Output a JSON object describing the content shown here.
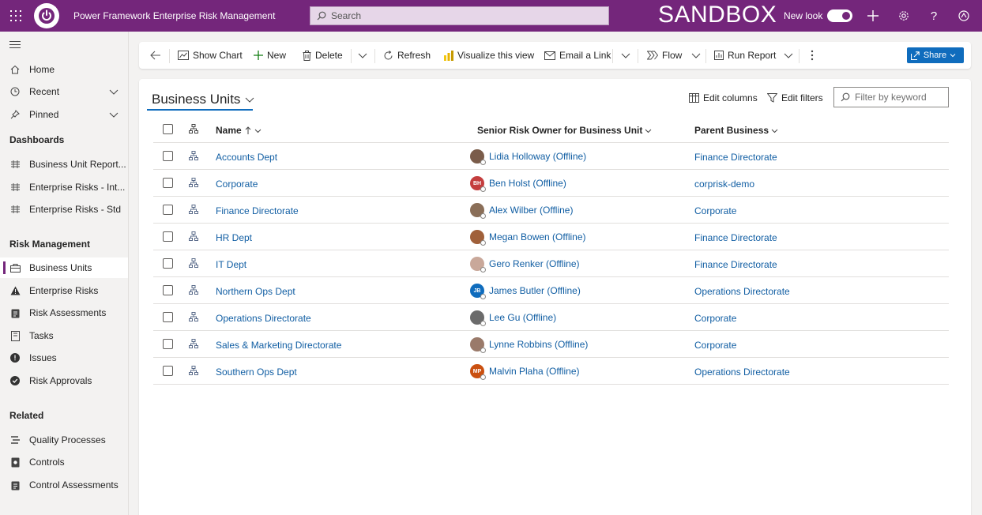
{
  "topbar": {
    "app_title": "Power Framework Enterprise Risk Management",
    "search_placeholder": "Search",
    "environment_label": "SANDBOX",
    "new_look_label": "New look",
    "new_look_on": true,
    "brand_color": "#74267b"
  },
  "sidebar": {
    "top_items": [
      {
        "label": "Home",
        "icon": "home-icon"
      },
      {
        "label": "Recent",
        "icon": "clock-icon"
      },
      {
        "label": "Pinned",
        "icon": "pin-icon"
      }
    ],
    "sections": [
      {
        "title": "Dashboards",
        "items": [
          {
            "label": "Business Unit Report...",
            "icon": "dashboard-icon"
          },
          {
            "label": "Enterprise Risks - Int...",
            "icon": "dashboard-icon"
          },
          {
            "label": "Enterprise Risks - Std",
            "icon": "dashboard-icon"
          }
        ]
      },
      {
        "title": "Risk Management",
        "items": [
          {
            "label": "Business Units",
            "icon": "business-unit-icon",
            "active": true
          },
          {
            "label": "Enterprise Risks",
            "icon": "warning-icon"
          },
          {
            "label": "Risk Assessments",
            "icon": "clipboard-icon"
          },
          {
            "label": "Tasks",
            "icon": "tasks-icon"
          },
          {
            "label": "Issues",
            "icon": "exclamation-icon"
          },
          {
            "label": "Risk Approvals",
            "icon": "checkmark-circle-icon"
          }
        ]
      },
      {
        "title": "Related",
        "items": [
          {
            "label": "Quality Processes",
            "icon": "process-icon"
          },
          {
            "label": "Controls",
            "icon": "controls-icon"
          },
          {
            "label": "Control Assessments",
            "icon": "clipboard-icon"
          }
        ]
      }
    ]
  },
  "commandbar": {
    "show_chart": "Show Chart",
    "new": "New",
    "delete": "Delete",
    "refresh": "Refresh",
    "visualize": "Visualize this view",
    "email_link": "Email a Link",
    "flow": "Flow",
    "run_report": "Run Report",
    "share": "Share"
  },
  "view": {
    "title": "Business Units",
    "edit_columns": "Edit columns",
    "edit_filters": "Edit filters",
    "filter_placeholder": "Filter by keyword",
    "columns": {
      "name": "Name",
      "owner": "Senior Risk Owner for Business Unit",
      "parent": "Parent Business"
    },
    "rows": [
      {
        "name": "Accounts Dept",
        "owner": "Lidia Holloway (Offline)",
        "initials": "",
        "avatar_color": "#7a5c4a",
        "parent": "Finance Directorate"
      },
      {
        "name": "Corporate",
        "owner": "Ben Holst (Offline)",
        "initials": "BH",
        "avatar_color": "#c43e3e",
        "parent": "corprisk-demo"
      },
      {
        "name": "Finance Directorate",
        "owner": "Alex Wilber (Offline)",
        "initials": "",
        "avatar_color": "#8a6e58",
        "parent": "Corporate"
      },
      {
        "name": "HR Dept",
        "owner": "Megan Bowen (Offline)",
        "initials": "",
        "avatar_color": "#a0603a",
        "parent": "Finance Directorate"
      },
      {
        "name": "IT Dept",
        "owner": "Gero Renker (Offline)",
        "initials": "",
        "avatar_color": "#c9a89a",
        "parent": "Finance Directorate"
      },
      {
        "name": "Northern Ops Dept",
        "owner": "James Butler (Offline)",
        "initials": "JB",
        "avatar_color": "#0f6cbd",
        "parent": "Operations Directorate"
      },
      {
        "name": "Operations Directorate",
        "owner": "Lee Gu (Offline)",
        "initials": "",
        "avatar_color": "#6b6b6b",
        "parent": "Corporate"
      },
      {
        "name": "Sales & Marketing Directorate",
        "owner": "Lynne Robbins (Offline)",
        "initials": "",
        "avatar_color": "#9a7a6a",
        "parent": "Corporate"
      },
      {
        "name": "Southern Ops Dept",
        "owner": "Malvin Plaha (Offline)",
        "initials": "MP",
        "avatar_color": "#ca5010",
        "parent": "Operations Directorate"
      }
    ]
  }
}
